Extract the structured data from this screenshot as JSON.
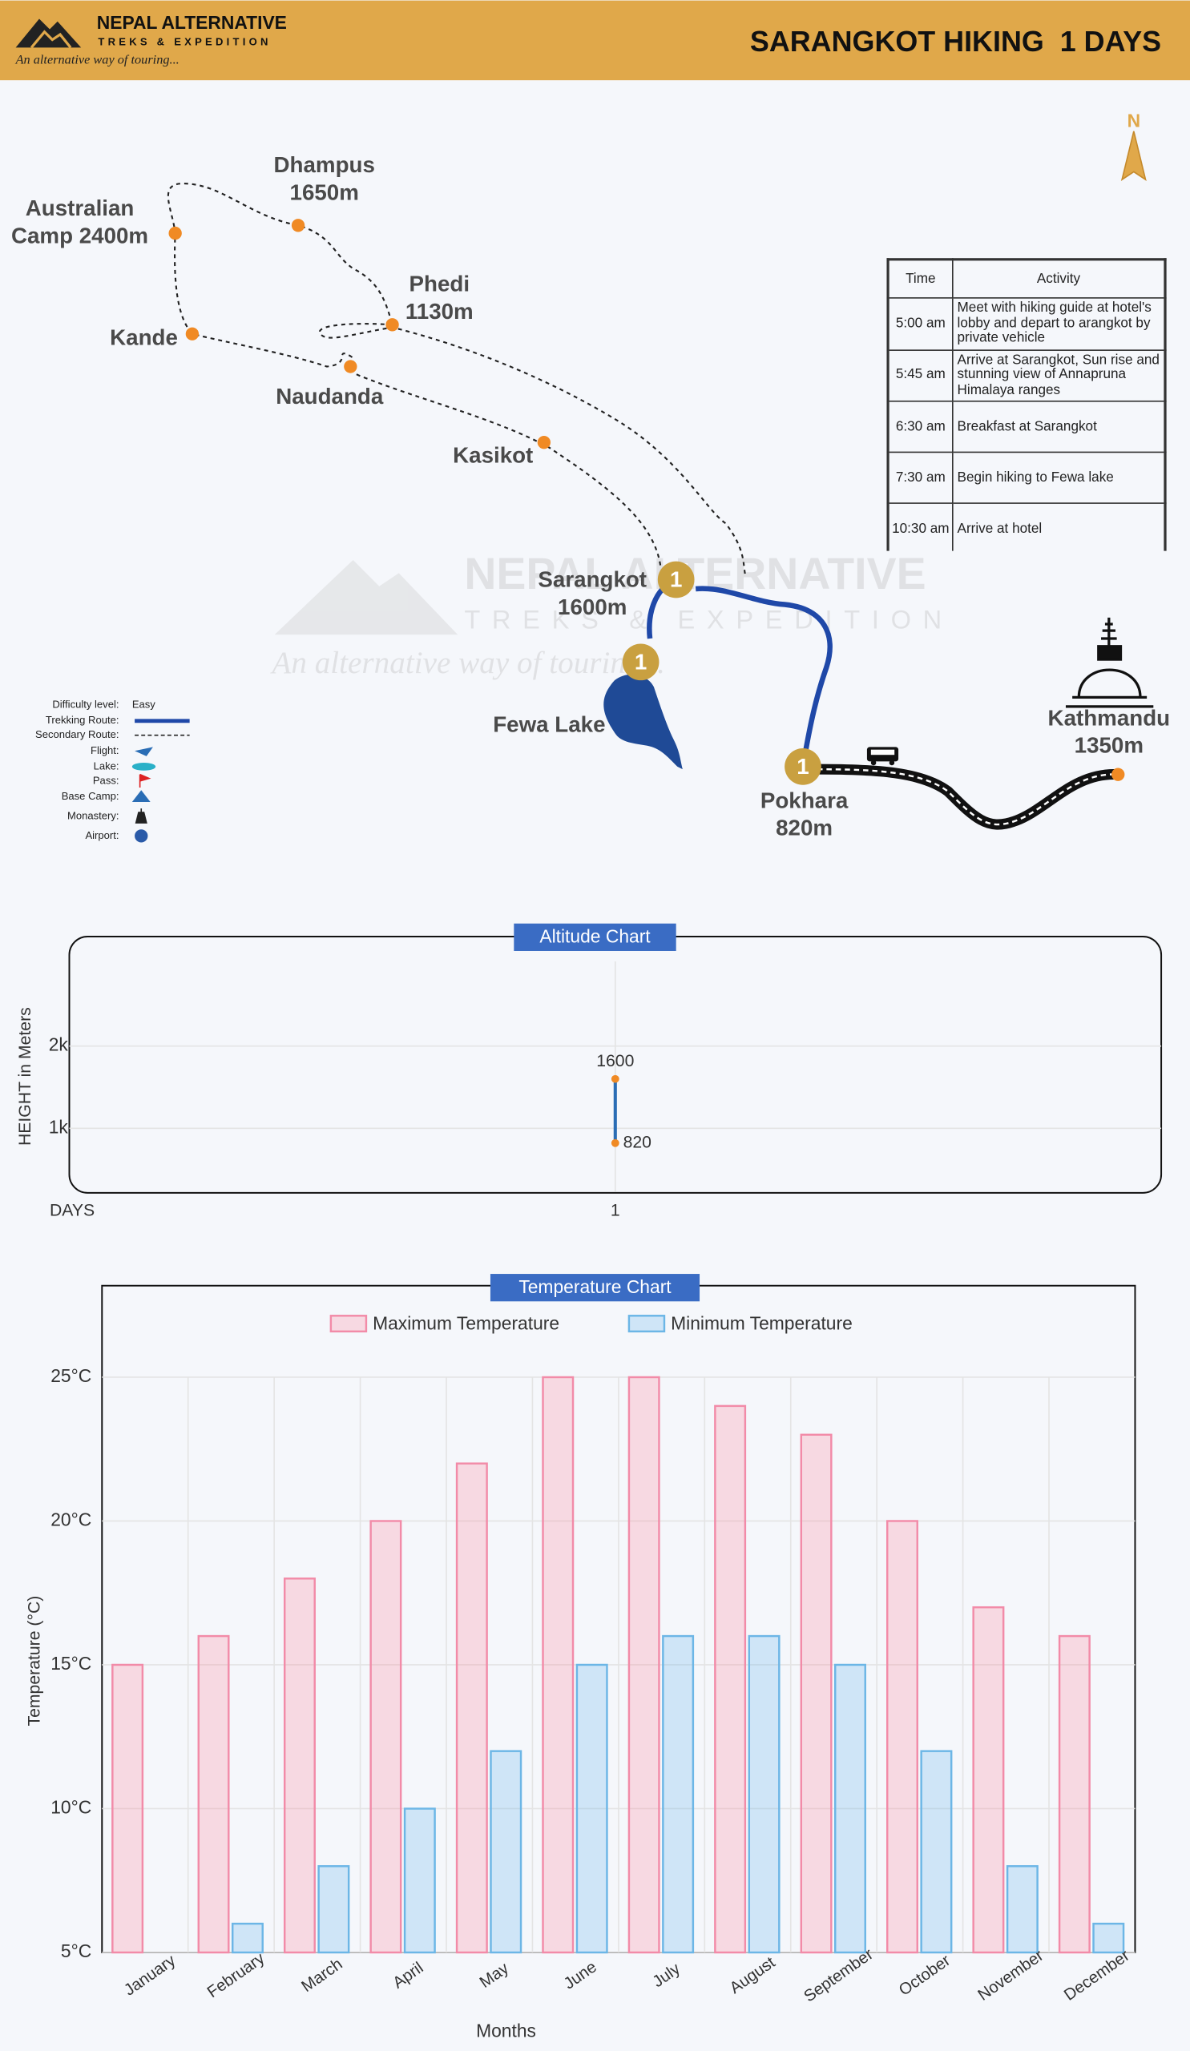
{
  "header": {
    "brand": "NEPAL ALTERNATIVE",
    "brand_sub": "TREKS & EXPEDITION",
    "tagline": "An alternative way of touring...",
    "title": "SARANGKOT HIKING  1 DAYS"
  },
  "watermark": {
    "brand": "NEPAL ALTERNATIVE",
    "brand_sub": "TREKS & EXPEDITION",
    "tagline": "An alternative way of touring..."
  },
  "map": {
    "north": "N",
    "day_markers": [
      "1",
      "1",
      "1"
    ],
    "places": [
      {
        "label": [
          "Australian",
          "Camp 2400m"
        ]
      },
      {
        "label": [
          "Dhampus",
          "1650m"
        ]
      },
      {
        "label": [
          "Phedi",
          "1130m"
        ]
      },
      {
        "label": [
          "Kande"
        ]
      },
      {
        "label": [
          "Naudanda"
        ]
      },
      {
        "label": [
          "Kasikot"
        ]
      },
      {
        "label": [
          "Sarangkot",
          "1600m"
        ]
      },
      {
        "label": [
          "Fewa Lake"
        ]
      },
      {
        "label": [
          "Pokhara",
          "820m"
        ]
      },
      {
        "label": [
          "Kathmandu",
          "1350m"
        ]
      }
    ]
  },
  "schedule": {
    "header": [
      "Time",
      "Activity"
    ],
    "rows": [
      [
        "5:00 am",
        "Meet with hiking guide at hotel's lobby and depart to arangkot by private vehicle"
      ],
      [
        "5:45 am",
        "Arrive at Sarangkot, Sun rise and stunning view of Annapruna Himalaya ranges"
      ],
      [
        "6:30 am",
        "Breakfast at Sarangkot"
      ],
      [
        "7:30 am",
        "Begin hiking to Fewa lake"
      ],
      [
        "10:30 am",
        "Arrive at hotel"
      ]
    ]
  },
  "legend": {
    "items": [
      "Difficulty level:",
      "Trekking Route:",
      "Secondary Route:",
      "Flight:",
      "Lake:",
      "Pass:",
      "Base Camp:",
      "Monastery:",
      "Airport:"
    ],
    "difficulty": "Easy"
  },
  "chart_data": [
    {
      "type": "line",
      "title": "Altitude Chart",
      "y_label": "HEIGHT in Meters",
      "x_label": "DAYS",
      "x": [
        1,
        1
      ],
      "values": [
        1600,
        820
      ],
      "color": "#2a6db5",
      "point_color": "#f08a24",
      "xlim": [
        0,
        2
      ],
      "xticks": [
        1
      ],
      "ylim": [
        230,
        3030
      ],
      "yticks": [
        {
          "value": 1000,
          "label": "1k"
        },
        {
          "value": 2000,
          "label": "2k"
        }
      ],
      "grid": true
    },
    {
      "type": "bar",
      "title": "Temperature Chart",
      "y_label": "Temperature (°C)",
      "x_label": "Months",
      "categories": [
        "January",
        "February",
        "March",
        "April",
        "May",
        "June",
        "July",
        "August",
        "September",
        "October",
        "November",
        "December"
      ],
      "series": [
        {
          "name": "Maximum Temperature",
          "color": "#f28ba8",
          "values": [
            15,
            16,
            18,
            20,
            22,
            25,
            25,
            24,
            23,
            20,
            17,
            16
          ]
        },
        {
          "name": "Minimum Temperature",
          "color": "#6cb6e6",
          "values": [
            5,
            6,
            8,
            10,
            12,
            15,
            16,
            16,
            15,
            12,
            8,
            6
          ]
        }
      ],
      "ylim": [
        5,
        25
      ],
      "yticks": [
        {
          "value": 5,
          "label": "5°C"
        },
        {
          "value": 10,
          "label": "10°C"
        },
        {
          "value": 15,
          "label": "15°C"
        },
        {
          "value": 20,
          "label": "20°C"
        },
        {
          "value": 25,
          "label": "25°C"
        }
      ],
      "grid": true,
      "legend": "top"
    }
  ]
}
